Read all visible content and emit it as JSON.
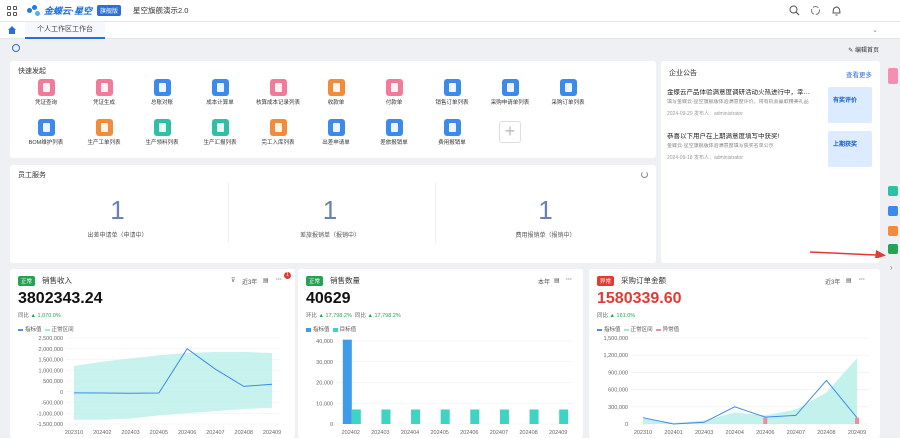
{
  "header": {
    "logo_text": "金蝶云·星空",
    "logo_badge": "旗舰版",
    "app_title": "星空旗舰演示2.0"
  },
  "tabs": [
    {
      "label": "个人工作区工作台"
    }
  ],
  "toolbar": {
    "edit_home": "编辑首页"
  },
  "quick": {
    "title": "快速发起",
    "items": [
      {
        "label": "凭证查询",
        "color": "#f07b9a"
      },
      {
        "label": "凭证生成",
        "color": "#f07b9a"
      },
      {
        "label": "总账对账",
        "color": "#3d8be8"
      },
      {
        "label": "成本计算单",
        "color": "#3d8be8"
      },
      {
        "label": "核算成本记录列表",
        "color": "#f07b9a"
      },
      {
        "label": "收款单",
        "color": "#f08c3a"
      },
      {
        "label": "付款单",
        "color": "#f07b9a"
      },
      {
        "label": "销售订单列表",
        "color": "#3d8be8"
      },
      {
        "label": "采购申请单列表",
        "color": "#3d8be8"
      },
      {
        "label": "采购订单列表",
        "color": "#3d8be8"
      },
      {
        "label": "BOM维护列表",
        "color": "#3d8be8"
      },
      {
        "label": "生产工单列表",
        "color": "#f08c3a"
      },
      {
        "label": "生产领料列表",
        "color": "#2fbfa3"
      },
      {
        "label": "生产汇报列表",
        "color": "#2fbfa3"
      },
      {
        "label": "完工入库列表",
        "color": "#f08c3a"
      },
      {
        "label": "出差申请单",
        "color": "#3d8be8"
      },
      {
        "label": "差旅报销单",
        "color": "#3d8be8"
      },
      {
        "label": "费用报销单",
        "color": "#3d8be8"
      }
    ]
  },
  "notice": {
    "title": "企业公告",
    "more": "查看更多",
    "items": [
      {
        "title": "金蝶云产品体验满意度调研活动火热进行中，幸…",
        "desc": "填写金蝶云·星空旗舰版体验满意度评价，将有机会赢取精美礼品",
        "meta": "2024-09-20   发布人：administrator",
        "img_text": "有奖评价"
      },
      {
        "title": "恭喜以下用户在上期满意度填写中获奖!",
        "desc": "金蝶云·星空旗舰版体验满意度填写获奖名单公示",
        "meta": "2024-09-18   发布人：administrator",
        "img_text": "上期获奖"
      }
    ]
  },
  "service": {
    "title": "员工服务",
    "items": [
      {
        "count": "1",
        "label": "出差申请单（申请中）"
      },
      {
        "count": "1",
        "label": "差旅报销单（报销中）"
      },
      {
        "count": "1",
        "label": "费用报销单（报销中）"
      }
    ]
  },
  "kpis": [
    {
      "tag": "正常",
      "tag_color": "#23a455",
      "name": "销售收入",
      "value": "3802343.24",
      "value_color": "#111",
      "cmp": "同比",
      "cmp_val": "1,070.0%",
      "period": "近3年",
      "legend": [
        "指标值",
        "正常区间"
      ]
    },
    {
      "tag": "正常",
      "tag_color": "#23a455",
      "name": "销售数量",
      "value": "40629",
      "value_color": "#111",
      "cmp": "环比",
      "cmp_val": "17,798.2%",
      "cmp2": "同比",
      "cmp2_val": "17,798.2%",
      "period": "本年",
      "legend": [
        "指标值",
        "目标值"
      ]
    },
    {
      "tag": "异常",
      "tag_color": "#e53935",
      "name": "采购订单金额",
      "value": "1580339.60",
      "value_color": "#e53935",
      "cmp": "同比",
      "cmp_val": "161.0%",
      "period": "近3年",
      "legend": [
        "指标值",
        "正常区间",
        "异常值"
      ]
    }
  ],
  "chart_data": [
    {
      "type": "line",
      "categories": [
        "202310",
        "202402",
        "202403",
        "202405",
        "202406",
        "202407",
        "202408",
        "202409"
      ],
      "series": [
        {
          "name": "指标值",
          "values": [
            -50000,
            -60000,
            -70000,
            -60000,
            2000000,
            1050000,
            250000,
            350000
          ]
        }
      ],
      "band": {
        "low": [
          -1300000,
          -1300000,
          -1250000,
          -1100000,
          -1000000,
          -900000,
          -800000,
          -750000
        ],
        "high": [
          1200000,
          1400000,
          1550000,
          1700000,
          1800000,
          1850000,
          1850000,
          1800000
        ]
      },
      "yticks": [
        "2,500,000",
        "2,000,000",
        "1,500,000",
        "1,000,000",
        "500,000",
        "0",
        "-500,000",
        "-1,000,000",
        "-1,500,000"
      ],
      "ylim": [
        -1500000,
        2500000
      ]
    },
    {
      "type": "bar",
      "categories": [
        "202402",
        "202403",
        "202404",
        "202405",
        "202406",
        "202407",
        "202408",
        "202409"
      ],
      "series": [
        {
          "name": "指标值",
          "values": [
            40629,
            0,
            0,
            0,
            0,
            0,
            0,
            0
          ]
        },
        {
          "name": "目标值",
          "values": [
            7000,
            7000,
            7000,
            7000,
            7000,
            7000,
            7000,
            7000
          ]
        }
      ],
      "yticks": [
        "40,000",
        "30,000",
        "20,000",
        "10,000",
        "0"
      ],
      "ylim": [
        0,
        40000
      ]
    },
    {
      "type": "line",
      "categories": [
        "202310",
        "202401",
        "202403",
        "202404",
        "202406",
        "202407",
        "202408",
        "202409"
      ],
      "series": [
        {
          "name": "指标值",
          "values": [
            110000,
            0,
            30000,
            300000,
            120000,
            150000,
            760000,
            110000
          ]
        },
        {
          "name": "异常值",
          "values": [
            null,
            null,
            null,
            null,
            110000,
            null,
            null,
            110000
          ]
        }
      ],
      "band": {
        "low": [
          0,
          0,
          0,
          0,
          0,
          0,
          0,
          0
        ],
        "high": [
          100000,
          20000,
          60000,
          200000,
          150000,
          250000,
          550000,
          1150000
        ]
      },
      "yticks": [
        "1,500,000",
        "1,200,000",
        "900,000",
        "600,000",
        "300,000",
        "0"
      ],
      "ylim": [
        0,
        1500000
      ]
    }
  ]
}
